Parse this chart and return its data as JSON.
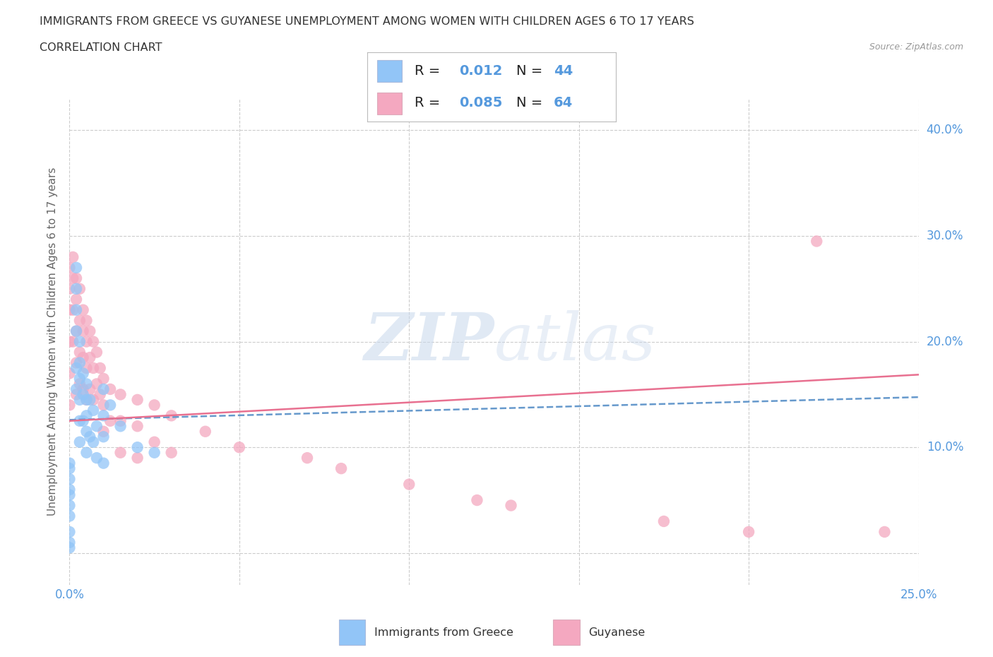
{
  "title_line1": "IMMIGRANTS FROM GREECE VS GUYANESE UNEMPLOYMENT AMONG WOMEN WITH CHILDREN AGES 6 TO 17 YEARS",
  "title_line2": "CORRELATION CHART",
  "source_text": "Source: ZipAtlas.com",
  "ylabel": "Unemployment Among Women with Children Ages 6 to 17 years",
  "xlim": [
    0.0,
    0.25
  ],
  "ylim": [
    -0.03,
    0.43
  ],
  "watermark_zip": "ZIP",
  "watermark_atlas": "atlas",
  "color_greece": "#92C5F7",
  "color_guyanese": "#F4A8C0",
  "line_color_greece": "#6699CC",
  "line_color_guyanese": "#E87090",
  "background_color": "#ffffff",
  "grid_color": "#cccccc",
  "label_color": "#5599DD",
  "greece_scatter_x": [
    0.0,
    0.0,
    0.0,
    0.0,
    0.0,
    0.0,
    0.0,
    0.0,
    0.0,
    0.0,
    0.002,
    0.002,
    0.002,
    0.002,
    0.002,
    0.002,
    0.003,
    0.003,
    0.003,
    0.003,
    0.003,
    0.003,
    0.004,
    0.004,
    0.004,
    0.005,
    0.005,
    0.005,
    0.005,
    0.005,
    0.006,
    0.006,
    0.007,
    0.007,
    0.008,
    0.008,
    0.01,
    0.01,
    0.01,
    0.01,
    0.012,
    0.015,
    0.02,
    0.025
  ],
  "greece_scatter_y": [
    0.085,
    0.08,
    0.07,
    0.06,
    0.055,
    0.045,
    0.035,
    0.02,
    0.01,
    0.005,
    0.27,
    0.25,
    0.23,
    0.21,
    0.175,
    0.155,
    0.2,
    0.18,
    0.165,
    0.145,
    0.125,
    0.105,
    0.17,
    0.15,
    0.125,
    0.16,
    0.145,
    0.13,
    0.115,
    0.095,
    0.145,
    0.11,
    0.135,
    0.105,
    0.12,
    0.09,
    0.155,
    0.13,
    0.11,
    0.085,
    0.14,
    0.12,
    0.1,
    0.095
  ],
  "guyanese_scatter_x": [
    0.0,
    0.0,
    0.0,
    0.0,
    0.0,
    0.0,
    0.001,
    0.001,
    0.001,
    0.001,
    0.002,
    0.002,
    0.002,
    0.002,
    0.002,
    0.003,
    0.003,
    0.003,
    0.003,
    0.004,
    0.004,
    0.004,
    0.004,
    0.005,
    0.005,
    0.005,
    0.005,
    0.006,
    0.006,
    0.006,
    0.007,
    0.007,
    0.007,
    0.008,
    0.008,
    0.009,
    0.009,
    0.01,
    0.01,
    0.01,
    0.012,
    0.012,
    0.015,
    0.015,
    0.015,
    0.02,
    0.02,
    0.02,
    0.025,
    0.025,
    0.03,
    0.03,
    0.04,
    0.05,
    0.07,
    0.08,
    0.1,
    0.12,
    0.13,
    0.175,
    0.2,
    0.22,
    0.24
  ],
  "guyanese_scatter_y": [
    0.27,
    0.25,
    0.23,
    0.2,
    0.17,
    0.14,
    0.28,
    0.26,
    0.23,
    0.2,
    0.26,
    0.24,
    0.21,
    0.18,
    0.15,
    0.25,
    0.22,
    0.19,
    0.16,
    0.23,
    0.21,
    0.185,
    0.155,
    0.22,
    0.2,
    0.175,
    0.145,
    0.21,
    0.185,
    0.155,
    0.2,
    0.175,
    0.145,
    0.19,
    0.16,
    0.175,
    0.15,
    0.165,
    0.14,
    0.115,
    0.155,
    0.125,
    0.15,
    0.125,
    0.095,
    0.145,
    0.12,
    0.09,
    0.14,
    0.105,
    0.13,
    0.095,
    0.115,
    0.1,
    0.09,
    0.08,
    0.065,
    0.05,
    0.045,
    0.03,
    0.02,
    0.295,
    0.02
  ]
}
